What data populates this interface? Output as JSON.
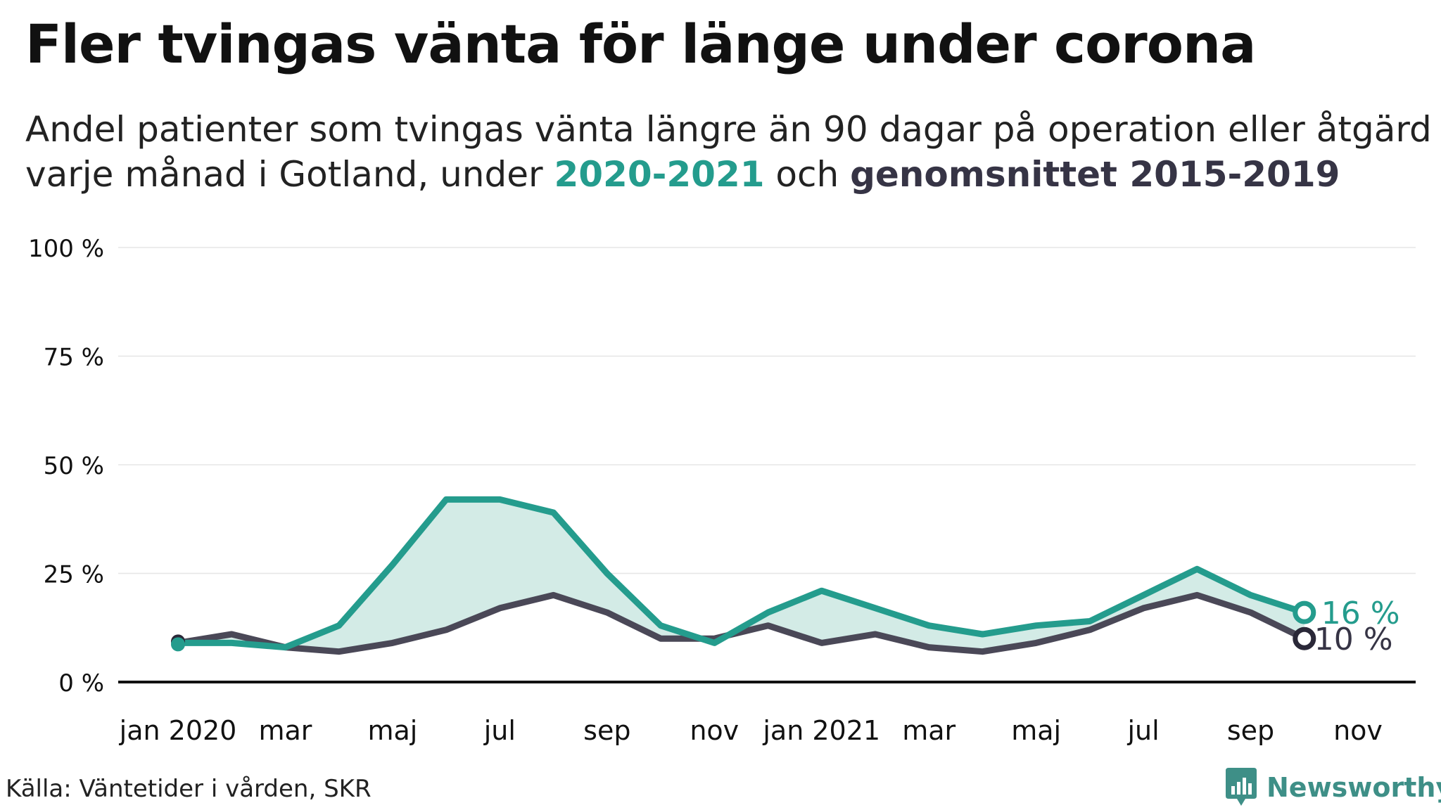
{
  "title": "Fler tvingas vänta för länge under corona",
  "subtitle": {
    "line1": "Andel patienter som tvingas vänta längre än 90 dagar på operation eller åtgärd",
    "line2_prefix": "varje månad i Gotland, under ",
    "highlight_current": "2020-2021",
    "line2_middle": " och ",
    "highlight_average": "genomsnittet 2015-2019"
  },
  "source": "Källa: Väntetider i vården, SKR",
  "brand": "Newsworthy",
  "colors": {
    "current": "#249c8d",
    "average": "#4a4857",
    "fill": "#d3ebe6",
    "grid": "#e6e6e6",
    "axis": "#111111",
    "brand": "#3e8f87"
  },
  "chart_data": {
    "type": "line",
    "title": "Fler tvingas vänta för länge under corona",
    "ylim": [
      0,
      100
    ],
    "y_ticks": [
      0,
      25,
      50,
      75,
      100
    ],
    "y_tick_labels": [
      "0 %",
      "25 %",
      "50 %",
      "75 %",
      "100 %"
    ],
    "x_tick_labels": [
      "jan 2020",
      "mar",
      "maj",
      "jul",
      "sep",
      "nov",
      "jan 2021",
      "mar",
      "maj",
      "jul",
      "sep",
      "nov"
    ],
    "x_tick_months": [
      "2020-01",
      "2020-03",
      "2020-05",
      "2020-07",
      "2020-09",
      "2020-11",
      "2021-01",
      "2021-03",
      "2021-05",
      "2021-07",
      "2021-09",
      "2021-11"
    ],
    "x_range": [
      "2019-12",
      "2021-12"
    ],
    "grid": true,
    "fill_between": true,
    "categories": [
      "2020-01",
      "2020-02",
      "2020-03",
      "2020-04",
      "2020-05",
      "2020-06",
      "2020-07",
      "2020-08",
      "2020-09",
      "2020-10",
      "2020-11",
      "2020-12",
      "2021-01",
      "2021-02",
      "2021-03",
      "2021-04",
      "2021-05",
      "2021-06",
      "2021-07",
      "2021-08",
      "2021-09",
      "2021-10"
    ],
    "series": [
      {
        "name": "2020-2021",
        "values": [
          9,
          9,
          8,
          13,
          27,
          42,
          42,
          39,
          25,
          13,
          9,
          16,
          21,
          17,
          13,
          11,
          13,
          14,
          20,
          26,
          20,
          16
        ],
        "end_label": "16 %"
      },
      {
        "name": "genomsnittet 2015-2019",
        "values": [
          9,
          11,
          8,
          7,
          9,
          12,
          17,
          20,
          16,
          10,
          10,
          13,
          9,
          11,
          8,
          7,
          9,
          12,
          17,
          20,
          16,
          10
        ],
        "end_label": "10 %"
      }
    ]
  }
}
